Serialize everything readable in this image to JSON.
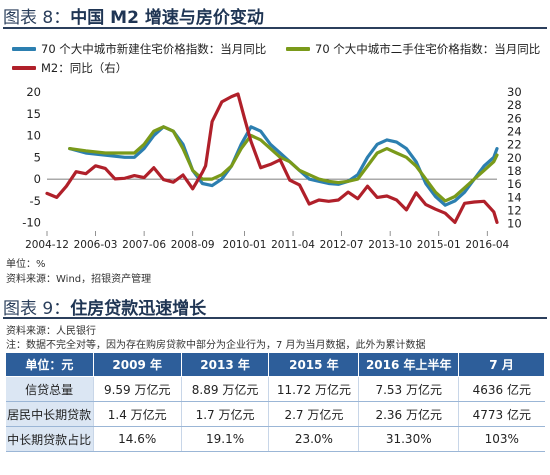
{
  "figure8": {
    "title_num": "图表 8",
    "title_sep": "：",
    "title_text": "中国 M2 增速与房价变动",
    "legend": [
      {
        "label": "70 个大中城市新建住宅价格指数：当月同比",
        "color": "#2c7fb0"
      },
      {
        "label": "70 个大中城市二手住宅价格指数：当月同比",
        "color": "#7a9a1a"
      },
      {
        "label": "M2：同比（右）",
        "color": "#b0202a"
      }
    ],
    "note_unit": "单位：%",
    "note_source": "资料来源：Wind，招银资产管理"
  },
  "chart_data": {
    "type": "line",
    "x_range": [
      "2004-12",
      "2016-07"
    ],
    "x_tick_labels": [
      "2004-12",
      "2006-03",
      "2007-06",
      "2008-09",
      "2010-01",
      "2011-04",
      "2012-07",
      "2013-10",
      "2015-01",
      "2016-04"
    ],
    "y_left": {
      "ticks": [
        -10,
        -5,
        0,
        5,
        10,
        15,
        20
      ],
      "lim": [
        -11,
        20
      ]
    },
    "y_right": {
      "ticks": [
        10,
        12,
        14,
        16,
        18,
        20,
        22,
        24,
        26,
        28,
        30
      ],
      "lim": [
        9.5,
        30
      ]
    },
    "series": [
      {
        "name": "70 个大中城市新建住宅价格指数：当月同比",
        "axis": "left",
        "color": "#2c7fb0",
        "points": [
          [
            "2005-07",
            7
          ],
          [
            "2005-12",
            6
          ],
          [
            "2006-06",
            5.5
          ],
          [
            "2006-12",
            5
          ],
          [
            "2007-03",
            5
          ],
          [
            "2007-06",
            7
          ],
          [
            "2007-09",
            10
          ],
          [
            "2007-12",
            12
          ],
          [
            "2008-03",
            11
          ],
          [
            "2008-06",
            8
          ],
          [
            "2008-09",
            2
          ],
          [
            "2008-12",
            -1
          ],
          [
            "2009-03",
            -1.5
          ],
          [
            "2009-06",
            0
          ],
          [
            "2009-09",
            3
          ],
          [
            "2009-12",
            8
          ],
          [
            "2010-03",
            12
          ],
          [
            "2010-06",
            11
          ],
          [
            "2010-09",
            8
          ],
          [
            "2010-12",
            6
          ],
          [
            "2011-03",
            4
          ],
          [
            "2011-06",
            2
          ],
          [
            "2011-09",
            0
          ],
          [
            "2011-12",
            -0.5
          ],
          [
            "2012-03",
            -1
          ],
          [
            "2012-06",
            -1.2
          ],
          [
            "2012-09",
            -0.5
          ],
          [
            "2012-12",
            1
          ],
          [
            "2013-03",
            5
          ],
          [
            "2013-06",
            8
          ],
          [
            "2013-09",
            9
          ],
          [
            "2013-12",
            8.5
          ],
          [
            "2014-03",
            7
          ],
          [
            "2014-06",
            4
          ],
          [
            "2014-09",
            -1
          ],
          [
            "2014-12",
            -4
          ],
          [
            "2015-03",
            -6
          ],
          [
            "2015-06",
            -5
          ],
          [
            "2015-09",
            -3
          ],
          [
            "2015-12",
            0
          ],
          [
            "2016-03",
            3
          ],
          [
            "2016-06",
            5
          ],
          [
            "2016-07",
            7
          ]
        ]
      },
      {
        "name": "70 个大中城市二手住宅价格指数：当月同比",
        "axis": "left",
        "color": "#7a9a1a",
        "points": [
          [
            "2005-07",
            7
          ],
          [
            "2005-12",
            6.5
          ],
          [
            "2006-06",
            6
          ],
          [
            "2006-12",
            6
          ],
          [
            "2007-03",
            6
          ],
          [
            "2007-06",
            8
          ],
          [
            "2007-09",
            11
          ],
          [
            "2007-12",
            12
          ],
          [
            "2008-03",
            11
          ],
          [
            "2008-06",
            7
          ],
          [
            "2008-09",
            2
          ],
          [
            "2008-12",
            0
          ],
          [
            "2009-03",
            0
          ],
          [
            "2009-06",
            1
          ],
          [
            "2009-09",
            3
          ],
          [
            "2009-12",
            7
          ],
          [
            "2010-03",
            10
          ],
          [
            "2010-06",
            9
          ],
          [
            "2010-09",
            7
          ],
          [
            "2010-12",
            5
          ],
          [
            "2011-03",
            4
          ],
          [
            "2011-06",
            2
          ],
          [
            "2011-09",
            1
          ],
          [
            "2011-12",
            0
          ],
          [
            "2012-03",
            -0.5
          ],
          [
            "2012-06",
            -0.8
          ],
          [
            "2012-09",
            -0.5
          ],
          [
            "2012-12",
            0
          ],
          [
            "2013-03",
            3
          ],
          [
            "2013-06",
            6
          ],
          [
            "2013-09",
            7
          ],
          [
            "2013-12",
            6
          ],
          [
            "2014-03",
            5
          ],
          [
            "2014-06",
            3
          ],
          [
            "2014-09",
            0
          ],
          [
            "2014-12",
            -3
          ],
          [
            "2015-03",
            -5
          ],
          [
            "2015-06",
            -4
          ],
          [
            "2015-09",
            -2
          ],
          [
            "2015-12",
            0
          ],
          [
            "2016-03",
            2
          ],
          [
            "2016-06",
            4
          ],
          [
            "2016-07",
            5.5
          ]
        ]
      },
      {
        "name": "M2：同比（右）",
        "axis": "right",
        "color": "#b0202a",
        "points": [
          [
            "2004-12",
            14.6
          ],
          [
            "2005-03",
            14
          ],
          [
            "2005-06",
            15.7
          ],
          [
            "2005-09",
            17.9
          ],
          [
            "2005-12",
            17.6
          ],
          [
            "2006-03",
            18.8
          ],
          [
            "2006-06",
            18.4
          ],
          [
            "2006-09",
            16.8
          ],
          [
            "2006-12",
            16.9
          ],
          [
            "2007-03",
            17.3
          ],
          [
            "2007-06",
            17
          ],
          [
            "2007-09",
            18.5
          ],
          [
            "2007-12",
            16.7
          ],
          [
            "2008-03",
            16.3
          ],
          [
            "2008-06",
            17.4
          ],
          [
            "2008-09",
            15.3
          ],
          [
            "2008-12",
            17.8
          ],
          [
            "2009-01",
            18.8
          ],
          [
            "2009-03",
            25.5
          ],
          [
            "2009-06",
            28.5
          ],
          [
            "2009-09",
            29.3
          ],
          [
            "2009-11",
            29.7
          ],
          [
            "2010-01",
            26
          ],
          [
            "2010-03",
            22.5
          ],
          [
            "2010-06",
            18.5
          ],
          [
            "2010-09",
            19
          ],
          [
            "2010-12",
            19.7
          ],
          [
            "2011-03",
            16.6
          ],
          [
            "2011-06",
            15.9
          ],
          [
            "2011-09",
            13
          ],
          [
            "2011-12",
            13.6
          ],
          [
            "2012-03",
            13.4
          ],
          [
            "2012-06",
            13.6
          ],
          [
            "2012-09",
            14.8
          ],
          [
            "2012-12",
            13.8
          ],
          [
            "2013-03",
            15.7
          ],
          [
            "2013-06",
            14
          ],
          [
            "2013-09",
            14.2
          ],
          [
            "2013-12",
            13.6
          ],
          [
            "2014-03",
            12.1
          ],
          [
            "2014-06",
            14.7
          ],
          [
            "2014-09",
            12.9
          ],
          [
            "2014-12",
            12.2
          ],
          [
            "2015-03",
            11.6
          ],
          [
            "2015-06",
            10.2
          ],
          [
            "2015-09",
            13.1
          ],
          [
            "2015-12",
            13.3
          ],
          [
            "2016-03",
            13.4
          ],
          [
            "2016-06",
            11.8
          ],
          [
            "2016-07",
            10.2
          ]
        ]
      }
    ]
  },
  "figure9": {
    "title_num": "图表 9",
    "title_sep": "：",
    "title_text": "住房贷款迅速增长",
    "note_source": "资料来源：人民银行",
    "note_remark": "注：数据不完全对等，因为存在购房贷款中部分为企业行为，7 月为当月数据，此外为累计数据",
    "table": {
      "headers": [
        "单位：元",
        "2009 年",
        "2013 年",
        "2015 年",
        "2016 年上半年",
        "7 月"
      ],
      "rows": [
        [
          "信贷总量",
          "9.59 万亿元",
          "8.89 万亿元",
          "11.72 万亿元",
          "7.53 万亿元",
          "4636 亿元"
        ],
        [
          "居民中长期贷款",
          "1.4 万亿元",
          "1.7 万亿元",
          "2.7 万亿元",
          "2.36 万亿元",
          "4773 亿元"
        ],
        [
          "中长期贷款占比",
          "14.6%",
          "19.1%",
          "23.0%",
          "31.30%",
          "103%"
        ]
      ]
    }
  }
}
